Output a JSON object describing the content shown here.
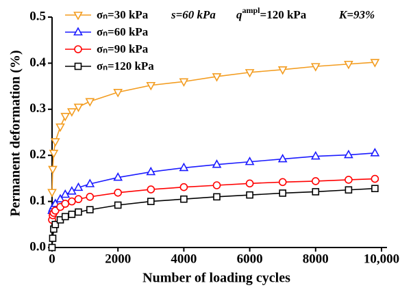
{
  "chart_data": {
    "type": "line",
    "xlabel": "Number of loading cycles",
    "ylabel": "Permanent deformation (%)",
    "annotations": [
      {
        "text": "s=60 kPa"
      },
      {
        "text": "q",
        "sup": "ampl",
        "rest": "=120 kPa"
      },
      {
        "text": "K=93%"
      }
    ],
    "x": [
      0,
      20,
      50,
      100,
      250,
      400,
      600,
      800,
      1150,
      2000,
      3000,
      4000,
      5000,
      6000,
      7000,
      8000,
      9000,
      9800
    ],
    "series": [
      {
        "name": "σₙ=30 kPa",
        "color": "#f39c1f",
        "marker": "triangle-down",
        "values": [
          0.12,
          0.17,
          0.205,
          0.23,
          0.262,
          0.285,
          0.295,
          0.305,
          0.317,
          0.337,
          0.352,
          0.36,
          0.371,
          0.38,
          0.386,
          0.393,
          0.398,
          0.402
        ]
      },
      {
        "name": "σₙ=60 kPa",
        "color": "#1a1aff",
        "marker": "triangle-up",
        "values": [
          0.08,
          0.085,
          0.09,
          0.095,
          0.105,
          0.115,
          0.122,
          0.13,
          0.138,
          0.152,
          0.164,
          0.173,
          0.18,
          0.186,
          0.192,
          0.198,
          0.201,
          0.205
        ]
      },
      {
        "name": "σₙ=90 kPa",
        "color": "#ff0000",
        "marker": "circle",
        "values": [
          0.06,
          0.07,
          0.075,
          0.08,
          0.088,
          0.095,
          0.1,
          0.105,
          0.11,
          0.119,
          0.126,
          0.131,
          0.135,
          0.139,
          0.142,
          0.144,
          0.147,
          0.149
        ]
      },
      {
        "name": "σₙ=120 kPa",
        "color": "#000000",
        "marker": "square",
        "values": [
          0.0,
          0.02,
          0.04,
          0.05,
          0.06,
          0.067,
          0.072,
          0.077,
          0.082,
          0.092,
          0.1,
          0.105,
          0.11,
          0.114,
          0.118,
          0.121,
          0.125,
          0.128
        ]
      }
    ],
    "xlim": [
      0,
      10000
    ],
    "xticks": [
      0,
      2000,
      4000,
      6000,
      8000,
      {
        "value": 10000,
        "label": "10,000"
      }
    ],
    "ylim": [
      0,
      0.5
    ],
    "yticks": [
      {
        "value": 0,
        "label": "0.0"
      },
      0.1,
      0.2,
      0.3,
      0.4,
      0.5
    ],
    "grid": false,
    "legend": "top-left"
  }
}
